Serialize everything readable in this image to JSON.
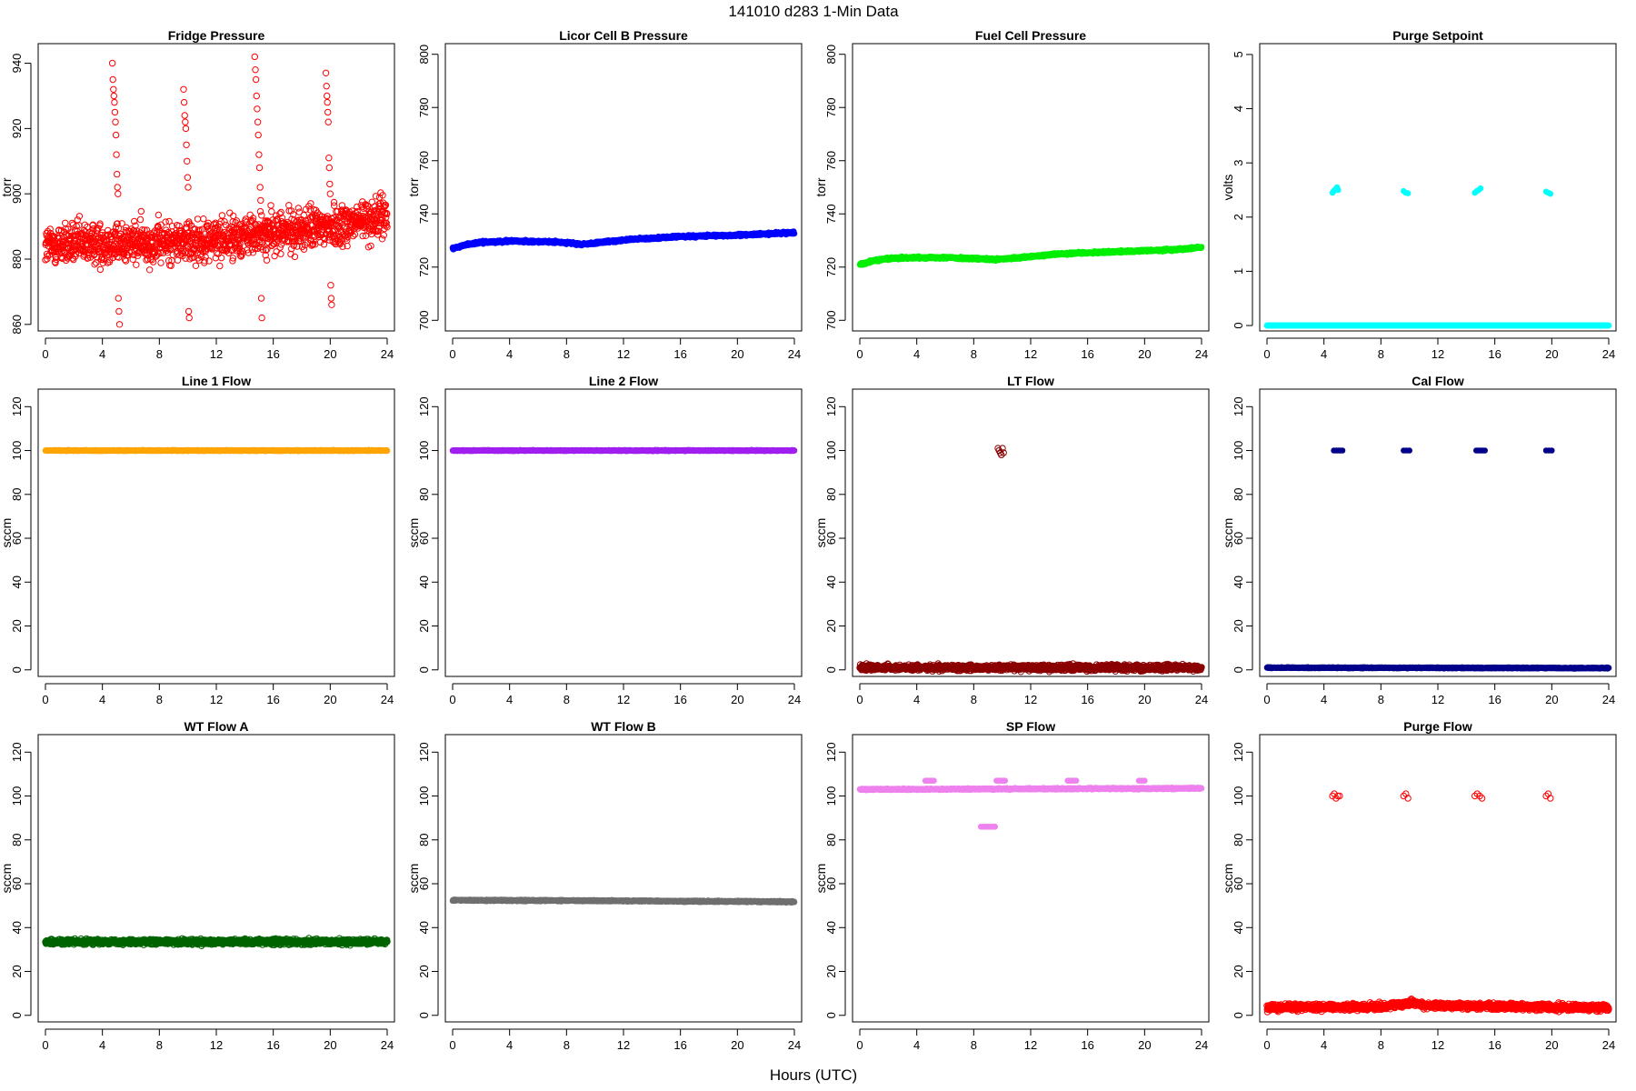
{
  "figure": {
    "title": "141010    d283    1-Min Data",
    "xlabel": "Hours (UTC)"
  },
  "chart_data": [
    {
      "type": "scatter",
      "title": "Fridge Pressure",
      "ylabel": "torr",
      "color": "#ff0000",
      "marker": "open",
      "xlim": [
        0,
        24
      ],
      "xticks": [
        0,
        4,
        8,
        12,
        16,
        20,
        24
      ],
      "ylim": [
        858,
        946
      ],
      "yticks": [
        860,
        880,
        900,
        920,
        940
      ],
      "pattern": {
        "baseline": [
          [
            0,
            884
          ],
          [
            4,
            885
          ],
          [
            8,
            885
          ],
          [
            12,
            886
          ],
          [
            16,
            888
          ],
          [
            20,
            890
          ],
          [
            24,
            893
          ]
        ],
        "scatter": 6,
        "excursions": [
          {
            "x_start": 4.7,
            "x_end": 5.2,
            "values": [
              940,
              935,
              932,
              930,
              928,
              925,
              922,
              918,
              912,
              906,
              902,
              900,
              868,
              864,
              860
            ]
          },
          {
            "x_start": 9.7,
            "x_end": 10.1,
            "values": [
              932,
              928,
              924,
              922,
              920,
              915,
              910,
              905,
              902,
              864,
              862
            ]
          },
          {
            "x_start": 14.7,
            "x_end": 15.2,
            "values": [
              942,
              938,
              935,
              930,
              926,
              922,
              918,
              912,
              908,
              902,
              898,
              868,
              862
            ]
          },
          {
            "x_start": 19.7,
            "x_end": 20.1,
            "values": [
              937,
              933,
              930,
              928,
              925,
              922,
              911,
              908,
              903,
              900,
              872,
              868,
              866
            ]
          }
        ]
      }
    },
    {
      "type": "scatter",
      "title": "Licor Cell B Pressure",
      "ylabel": "torr",
      "color": "#0000ff",
      "marker": "filled",
      "xlim": [
        0,
        24
      ],
      "xticks": [
        0,
        4,
        8,
        12,
        16,
        20,
        24
      ],
      "ylim": [
        696,
        804
      ],
      "yticks": [
        700,
        720,
        740,
        760,
        780,
        800
      ],
      "pattern": {
        "baseline": [
          [
            0,
            727
          ],
          [
            1,
            728.5
          ],
          [
            2,
            729.3
          ],
          [
            4,
            729.8
          ],
          [
            6,
            729.6
          ],
          [
            8,
            729.2
          ],
          [
            9,
            728.5
          ],
          [
            10,
            729
          ],
          [
            12,
            730.2
          ],
          [
            16,
            731.5
          ],
          [
            20,
            732
          ],
          [
            24,
            733
          ]
        ],
        "scatter": 0.4
      }
    },
    {
      "type": "scatter",
      "title": "Fuel Cell Pressure",
      "ylabel": "torr",
      "color": "#00ee00",
      "marker": "filled",
      "xlim": [
        0,
        24
      ],
      "xticks": [
        0,
        4,
        8,
        12,
        16,
        20,
        24
      ],
      "ylim": [
        696,
        804
      ],
      "yticks": [
        700,
        720,
        740,
        760,
        780,
        800
      ],
      "pattern": {
        "baseline": [
          [
            0,
            721
          ],
          [
            1,
            722.5
          ],
          [
            2,
            723.2
          ],
          [
            4,
            723.6
          ],
          [
            6,
            723.6
          ],
          [
            8,
            723.2
          ],
          [
            9.5,
            722.8
          ],
          [
            11,
            723.4
          ],
          [
            14,
            725
          ],
          [
            18,
            725.8
          ],
          [
            22,
            726.5
          ],
          [
            24,
            727.4
          ]
        ],
        "scatter": 0.4
      }
    },
    {
      "type": "scatter",
      "title": "Purge Setpoint",
      "ylabel": "volts",
      "color": "#00ffff",
      "marker": "filled",
      "xlim": [
        0,
        24
      ],
      "xticks": [
        0,
        4,
        8,
        12,
        16,
        20,
        24
      ],
      "ylim": [
        -0.1,
        5.2
      ],
      "yticks": [
        0,
        1,
        2,
        3,
        4,
        5
      ],
      "pattern": {
        "baseline": [
          [
            0,
            0
          ],
          [
            24,
            0
          ]
        ],
        "scatter": 0,
        "excursions": [
          {
            "x_start": 4.6,
            "x_end": 5.0,
            "values": [
              2.45,
              2.48,
              2.5,
              2.52,
              2.55,
              2.5
            ]
          },
          {
            "x_start": 9.6,
            "x_end": 9.9,
            "values": [
              2.48,
              2.45,
              2.44
            ]
          },
          {
            "x_start": 14.6,
            "x_end": 15.0,
            "values": [
              2.45,
              2.48,
              2.5,
              2.53
            ]
          },
          {
            "x_start": 19.6,
            "x_end": 19.9,
            "values": [
              2.47,
              2.45,
              2.43
            ]
          }
        ]
      }
    },
    {
      "type": "scatter",
      "title": "Line 1 Flow",
      "ylabel": "sccm",
      "color": "#ffa500",
      "marker": "filled",
      "xlim": [
        0,
        24
      ],
      "xticks": [
        0,
        4,
        8,
        12,
        16,
        20,
        24
      ],
      "ylim": [
        -3,
        128
      ],
      "yticks": [
        0,
        20,
        40,
        60,
        80,
        100,
        120
      ],
      "pattern": {
        "baseline": [
          [
            0,
            100
          ],
          [
            24,
            100
          ]
        ],
        "scatter": 0.2
      }
    },
    {
      "type": "scatter",
      "title": "Line 2 Flow",
      "ylabel": "sccm",
      "color": "#a020f0",
      "marker": "filled",
      "xlim": [
        0,
        24
      ],
      "xticks": [
        0,
        4,
        8,
        12,
        16,
        20,
        24
      ],
      "ylim": [
        -3,
        128
      ],
      "yticks": [
        0,
        20,
        40,
        60,
        80,
        100,
        120
      ],
      "pattern": {
        "baseline": [
          [
            0,
            100
          ],
          [
            24,
            100
          ]
        ],
        "scatter": 0.2
      }
    },
    {
      "type": "scatter",
      "title": "LT Flow",
      "ylabel": "sccm",
      "color": "#8b0000",
      "marker": "open",
      "xlim": [
        0,
        24
      ],
      "xticks": [
        0,
        4,
        8,
        12,
        16,
        20,
        24
      ],
      "ylim": [
        -3,
        128
      ],
      "yticks": [
        0,
        20,
        40,
        60,
        80,
        100,
        120
      ],
      "pattern": {
        "baseline": [
          [
            0,
            1
          ],
          [
            24,
            1
          ]
        ],
        "scatter": 1.2,
        "excursions": [
          {
            "x_start": 9.7,
            "x_end": 10.1,
            "values": [
              101,
              100,
              99,
              98,
              101,
              99
            ]
          }
        ]
      }
    },
    {
      "type": "scatter",
      "title": "Cal Flow",
      "ylabel": "sccm",
      "color": "#00008b",
      "marker": "filled",
      "xlim": [
        0,
        24
      ],
      "xticks": [
        0,
        4,
        8,
        12,
        16,
        20,
        24
      ],
      "ylim": [
        -3,
        128
      ],
      "yticks": [
        0,
        20,
        40,
        60,
        80,
        100,
        120
      ],
      "pattern": {
        "baseline": [
          [
            0,
            1
          ],
          [
            24,
            0.8
          ]
        ],
        "scatter": 0.2,
        "excursions": [
          {
            "x_start": 4.7,
            "x_end": 5.3,
            "values": [
              100,
              100,
              100,
              100,
              100
            ]
          },
          {
            "x_start": 9.6,
            "x_end": 10.0,
            "values": [
              100,
              100,
              100
            ]
          },
          {
            "x_start": 14.7,
            "x_end": 15.3,
            "values": [
              100,
              100,
              100,
              100,
              100
            ]
          },
          {
            "x_start": 19.6,
            "x_end": 20.0,
            "values": [
              100,
              100,
              100
            ]
          }
        ]
      }
    },
    {
      "type": "scatter",
      "title": "WT Flow A",
      "ylabel": "sccm",
      "color": "#006400",
      "marker": "open",
      "xlim": [
        0,
        24
      ],
      "xticks": [
        0,
        4,
        8,
        12,
        16,
        20,
        24
      ],
      "ylim": [
        -3,
        128
      ],
      "yticks": [
        0,
        20,
        40,
        60,
        80,
        100,
        120
      ],
      "pattern": {
        "baseline": [
          [
            0,
            33.5
          ],
          [
            24,
            33.5
          ]
        ],
        "scatter": 1.1
      }
    },
    {
      "type": "scatter",
      "title": "WT Flow B",
      "ylabel": "sccm",
      "color": "#707070",
      "marker": "filled",
      "xlim": [
        0,
        24
      ],
      "xticks": [
        0,
        4,
        8,
        12,
        16,
        20,
        24
      ],
      "ylim": [
        -3,
        128
      ],
      "yticks": [
        0,
        20,
        40,
        60,
        80,
        100,
        120
      ],
      "pattern": {
        "baseline": [
          [
            0,
            52.5
          ],
          [
            12,
            52.2
          ],
          [
            24,
            51.8
          ]
        ],
        "scatter": 0.3
      }
    },
    {
      "type": "scatter",
      "title": "SP Flow",
      "ylabel": "sccm",
      "color": "#ee82ee",
      "marker": "filled",
      "xlim": [
        0,
        24
      ],
      "xticks": [
        0,
        4,
        8,
        12,
        16,
        20,
        24
      ],
      "ylim": [
        -3,
        128
      ],
      "yticks": [
        0,
        20,
        40,
        60,
        80,
        100,
        120
      ],
      "pattern": {
        "baseline": [
          [
            0,
            103
          ],
          [
            24,
            103.5
          ]
        ],
        "scatter": 0.3,
        "excursions": [
          {
            "x_start": 4.6,
            "x_end": 5.2,
            "values": [
              107,
              107,
              107,
              107,
              107
            ]
          },
          {
            "x_start": 8.5,
            "x_end": 9.5,
            "values": [
              86,
              86,
              86,
              86,
              86,
              86,
              86,
              86
            ]
          },
          {
            "x_start": 9.6,
            "x_end": 10.2,
            "values": [
              107,
              107,
              107,
              107,
              107
            ]
          },
          {
            "x_start": 14.6,
            "x_end": 15.2,
            "values": [
              107,
              107,
              107,
              107,
              107
            ]
          },
          {
            "x_start": 19.6,
            "x_end": 20.0,
            "values": [
              107,
              107,
              107
            ]
          }
        ]
      }
    },
    {
      "type": "scatter",
      "title": "Purge Flow",
      "ylabel": "sccm",
      "color": "#ff0000",
      "marker": "open",
      "xlim": [
        0,
        24
      ],
      "xticks": [
        0,
        4,
        8,
        12,
        16,
        20,
        24
      ],
      "ylim": [
        -3,
        128
      ],
      "yticks": [
        0,
        20,
        40,
        60,
        80,
        100,
        120
      ],
      "pattern": {
        "baseline": [
          [
            0,
            3.5
          ],
          [
            8,
            4
          ],
          [
            9.5,
            5
          ],
          [
            10,
            6
          ],
          [
            11,
            4.5
          ],
          [
            24,
            3.5
          ]
        ],
        "scatter": 1.4,
        "excursions": [
          {
            "x_start": 4.6,
            "x_end": 5.1,
            "values": [
              100,
              101,
              99,
              100,
              100
            ]
          },
          {
            "x_start": 9.6,
            "x_end": 9.9,
            "values": [
              100,
              101,
              99
            ]
          },
          {
            "x_start": 14.6,
            "x_end": 15.1,
            "values": [
              100,
              101,
              100,
              99
            ]
          },
          {
            "x_start": 19.6,
            "x_end": 19.9,
            "values": [
              100,
              101,
              99
            ]
          }
        ]
      }
    }
  ]
}
